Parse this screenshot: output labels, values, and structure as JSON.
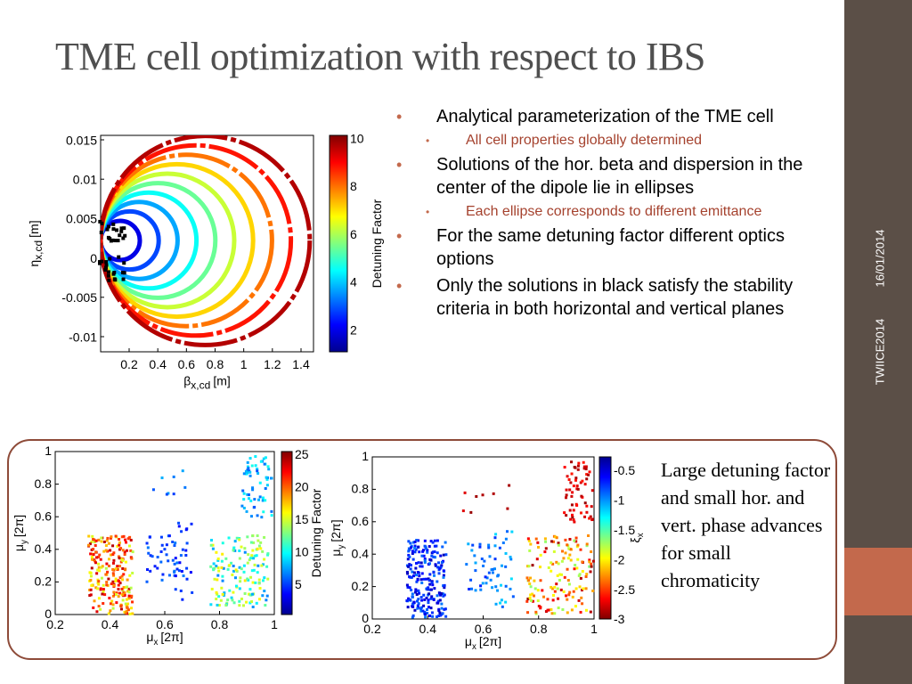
{
  "title": "TME cell optimization with respect to IBS",
  "bullets": [
    {
      "text": "Analytical parameterization of the TME cell",
      "sub": [
        "All cell properties globally determined"
      ]
    },
    {
      "text": "Solutions of the hor. beta and dispersion in the center of the dipole lie in ellipses",
      "sub": [
        "Each ellipse corresponds to different emittance"
      ]
    },
    {
      "text": "For the same detuning factor different optics options",
      "sub": []
    },
    {
      "text": "Only the solutions in black satisfy the stability criteria in both horizontal and vertical planes",
      "sub": []
    }
  ],
  "date": "16/01/2014",
  "conference": "TWIICE2014",
  "caption": "Large detuning factor and small hor. and vert. phase advances for small chromaticity",
  "plots": [
    {
      "yticks": [
        "0.015",
        "0.01",
        "0.005",
        "0",
        "-0.005",
        "-0.01"
      ],
      "xticks": [
        "0.2",
        "0.4",
        "0.6",
        "0.8",
        "1",
        "1.2",
        "1.4"
      ],
      "ylabel": {
        "symbol": "η",
        "sub": "x,cd",
        "unit": "[m]"
      },
      "xlabel": {
        "symbol": "β",
        "sub": "x,cd",
        "unit": "[m]"
      },
      "cbar_ticks": [
        "10",
        "8",
        "6",
        "4",
        "2"
      ],
      "cbar_label": "Detuning Factor"
    },
    {
      "yticks": [
        "1",
        "0.8",
        "0.6",
        "0.4",
        "0.2",
        "0"
      ],
      "xticks": [
        "0.2",
        "0.4",
        "0.6",
        "0.8",
        "1"
      ],
      "ylabel": {
        "symbol": "μ",
        "sub": "y",
        "unit": "[2π]"
      },
      "xlabel": {
        "symbol": "μ",
        "sub": "x",
        "unit": "[2π]"
      },
      "cbar_ticks": [
        "25",
        "20",
        "15",
        "10",
        "5"
      ],
      "cbar_label": "Detuning Factor"
    },
    {
      "yticks": [
        "1",
        "0.8",
        "0.6",
        "0.4",
        "0.2",
        "0"
      ],
      "xticks": [
        "0.2",
        "0.4",
        "0.6",
        "0.8",
        "1"
      ],
      "ylabel": {
        "symbol": "μ",
        "sub": "y",
        "unit": "[2π]"
      },
      "xlabel": {
        "symbol": "μ",
        "sub": "x",
        "unit": "[2π]"
      },
      "cbar_ticks": [
        "-0.5",
        "-1",
        "-1.5",
        "-2",
        "-2.5",
        "-3"
      ],
      "cbar_label": {
        "symbol": "ξ",
        "sub": "x"
      }
    }
  ]
}
